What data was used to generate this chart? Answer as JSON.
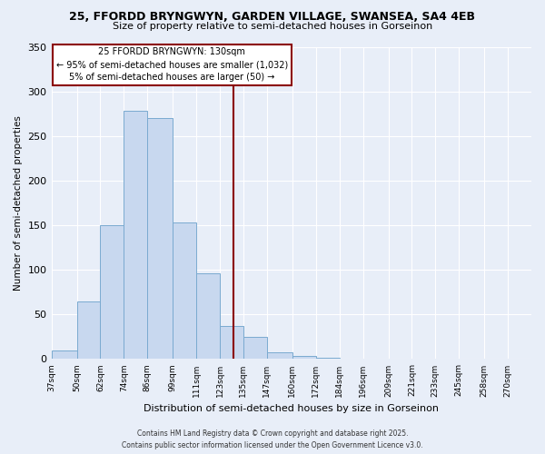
{
  "title": "25, FFORDD BRYNGWYN, GARDEN VILLAGE, SWANSEA, SA4 4EB",
  "subtitle": "Size of property relative to semi-detached houses in Gorseinon",
  "xlabel": "Distribution of semi-detached houses by size in Gorseinon",
  "ylabel": "Number of semi-detached properties",
  "bar_color": "#c8d8ef",
  "bar_edge_color": "#7aaad0",
  "bin_edges": [
    37,
    50,
    62,
    74,
    86,
    99,
    111,
    123,
    135,
    147,
    160,
    172,
    184,
    196,
    209,
    221,
    233,
    245,
    258,
    270,
    282
  ],
  "bar_heights": [
    10,
    65,
    150,
    278,
    270,
    153,
    96,
    37,
    25,
    8,
    3,
    1,
    0,
    0,
    0,
    0,
    0,
    0,
    0,
    0
  ],
  "property_size": 130,
  "vline_color": "#8b0000",
  "annotation_title": "25 FFORDD BRYNGWYN: 130sqm",
  "annotation_line1": "← 95% of semi-detached houses are smaller (1,032)",
  "annotation_line2": "5% of semi-detached houses are larger (50) →",
  "footer1": "Contains HM Land Registry data © Crown copyright and database right 2025.",
  "footer2": "Contains public sector information licensed under the Open Government Licence v3.0.",
  "ylim": [
    0,
    350
  ],
  "xlim_min": 37,
  "xlim_max": 282,
  "background_color": "#e8eef8",
  "grid_color": "#ffffff",
  "yticks": [
    0,
    50,
    100,
    150,
    200,
    250,
    300,
    350
  ]
}
